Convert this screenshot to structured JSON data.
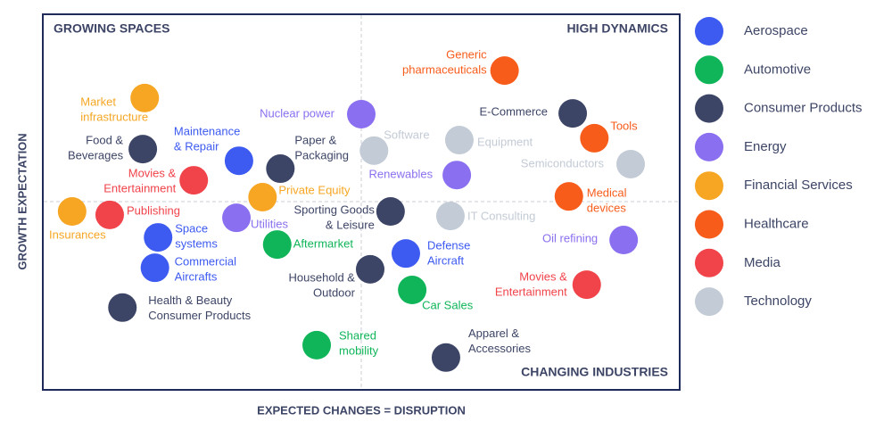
{
  "chart_data": {
    "type": "scatter",
    "x_label": "EXPECTED CHANGES = DISRUPTION",
    "y_label": "GROWTH EXPECTATION",
    "annotations": [
      "GROWING SPACES",
      "HIGH DYNAMICS",
      "CHANGING INDUSTRIES"
    ],
    "xlim": [
      0,
      100
    ],
    "ylim": [
      0,
      100
    ],
    "series": [
      {
        "name": "Aerospace",
        "color": "#3d5af1",
        "x": [
          30.8,
          18.1,
          17.6,
          57.0
        ],
        "values": [
          61.0,
          40.6,
          32.5,
          36.3
        ],
        "labels": [
          [
            "Maintenance",
            "& Repair"
          ],
          [
            "Space",
            "systems"
          ],
          [
            "Commercial",
            "Aircrafts"
          ],
          [
            "Defense",
            "Aircraft"
          ]
        ]
      },
      {
        "name": "Automotive",
        "color": "#10b559",
        "x": [
          36.8,
          58.0,
          43.0
        ],
        "values": [
          38.7,
          26.6,
          11.9
        ],
        "labels": [
          [
            "Aftermarket"
          ],
          [
            "Car Sales"
          ],
          [
            "Shared",
            "mobility"
          ]
        ]
      },
      {
        "name": "Consumer Products",
        "color": "#3d4566",
        "x": [
          15.7,
          37.3,
          83.2,
          54.6,
          51.4,
          12.5,
          63.3
        ],
        "values": [
          64.1,
          58.9,
          73.6,
          47.5,
          32.1,
          21.9,
          8.6
        ],
        "labels": [
          [
            "Food &",
            "Beverages"
          ],
          [
            "Paper &",
            "Packaging"
          ],
          [
            "E-Commerce"
          ],
          [
            "Sporting Goods",
            "& Leisure"
          ],
          [
            "Household &",
            "Outdoor"
          ],
          [
            "Health & Beauty",
            "Consumer Products"
          ],
          [
            "Apparel &",
            "Accessories"
          ]
        ]
      },
      {
        "name": "Energy",
        "color": "#8a6ff0",
        "x": [
          50.0,
          65.0,
          30.4,
          91.2
        ],
        "values": [
          73.4,
          57.2,
          45.8,
          39.9
        ],
        "labels": [
          [
            "Nuclear power"
          ],
          [
            "Renewables"
          ],
          [
            "Utilities"
          ],
          [
            "Oil refining"
          ]
        ]
      },
      {
        "name": "Financial Services",
        "color": "#f6a623",
        "x": [
          16.0,
          34.5,
          4.6
        ],
        "values": [
          77.7,
          51.3,
          47.5
        ],
        "labels": [
          [
            "Market",
            "infrastructure"
          ],
          [
            "Private Equity"
          ],
          [
            "Insurances"
          ]
        ]
      },
      {
        "name": "Healthcare",
        "color": "#f75c1b",
        "x": [
          72.5,
          86.6,
          82.6
        ],
        "values": [
          85.0,
          67.0,
          51.5
        ],
        "labels": [
          [
            "Generic",
            "pharmaceuticals"
          ],
          [
            "Tools"
          ],
          [
            "Medical",
            "devices"
          ]
        ]
      },
      {
        "name": "Media",
        "color": "#f0434a",
        "x": [
          23.7,
          10.5,
          85.4
        ],
        "values": [
          55.8,
          46.6,
          28.0
        ],
        "labels": [
          [
            "Movies &",
            "Entertainment"
          ],
          [
            "Publishing"
          ],
          [
            "Movies &",
            "Entertainment"
          ]
        ]
      },
      {
        "name": "Technology",
        "color": "#c3cbd6",
        "x": [
          52.0,
          65.4,
          92.3,
          64.0
        ],
        "values": [
          63.7,
          66.5,
          60.1,
          46.3
        ],
        "labels": [
          [
            "Software"
          ],
          [
            "Equipment"
          ],
          [
            "Semiconductors"
          ],
          [
            "IT Consulting"
          ]
        ]
      }
    ]
  }
}
